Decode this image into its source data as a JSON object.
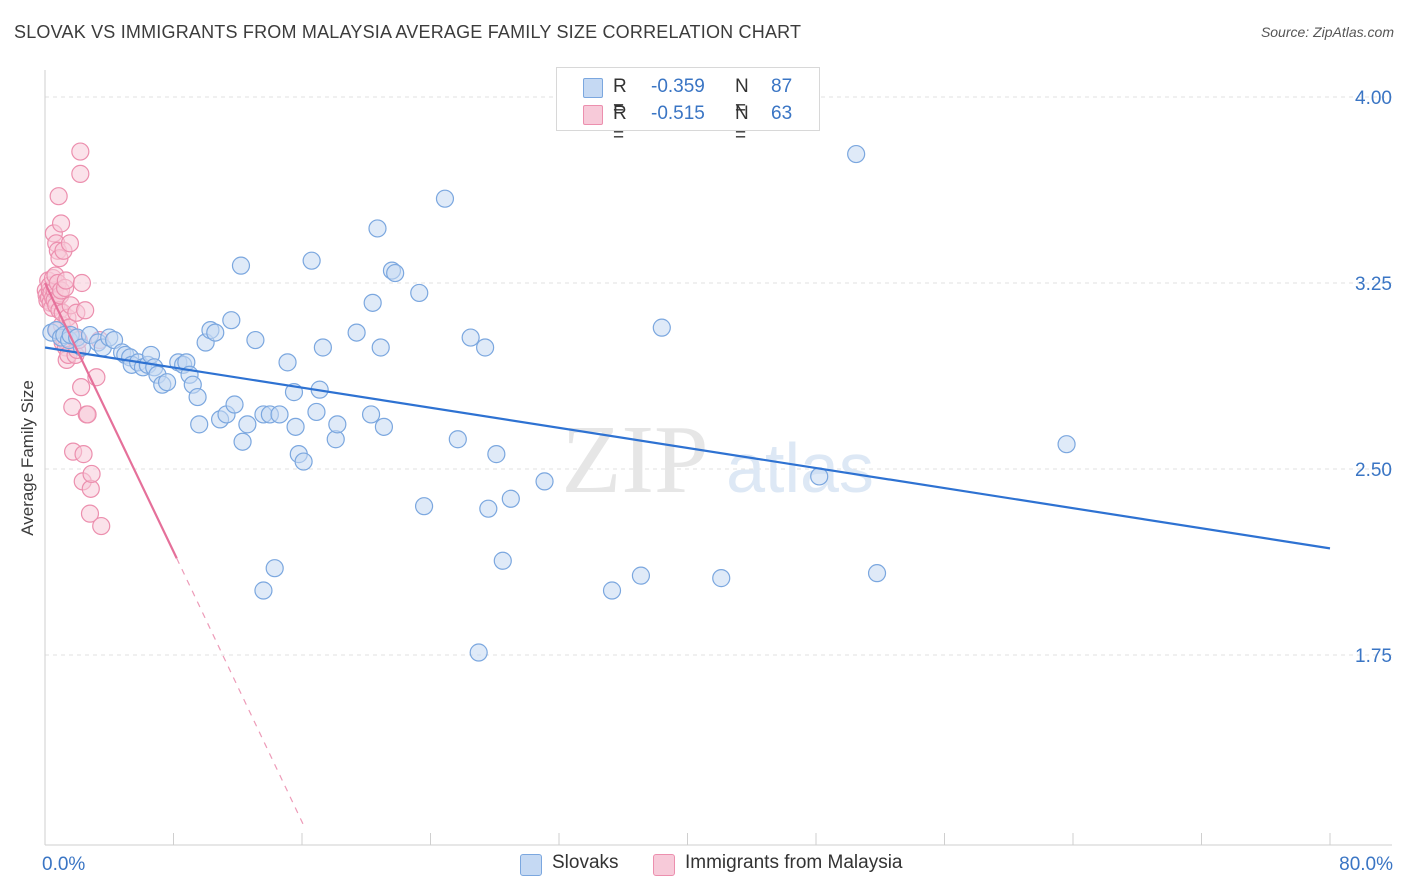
{
  "header": {
    "title": "SLOVAK VS IMMIGRANTS FROM MALAYSIA AVERAGE FAMILY SIZE CORRELATION CHART",
    "source": "Source: ZipAtlas.com"
  },
  "watermark": {
    "zip": "ZIP",
    "atlas": "atlas"
  },
  "legend_top": [
    {
      "r_label": "R =",
      "r_value": "-0.359",
      "n_label": "N =",
      "n_value": "87"
    },
    {
      "r_label": "R =",
      "r_value": "-0.515",
      "n_label": "N =",
      "n_value": "63"
    }
  ],
  "colors": {
    "blue": "#7ba7df",
    "blue_fill": "#c5d9f3",
    "blue_line": "#2e72d2",
    "pink": "#ec8fae",
    "pink_fill": "#f7cad9",
    "pink_line": "#e5709a",
    "axis_text": "#3a75c4",
    "grid": "#e2e2e2"
  },
  "chart_data": {
    "type": "scatter",
    "title": "SLOVAK VS IMMIGRANTS FROM MALAYSIA AVERAGE FAMILY SIZE CORRELATION CHART",
    "xlabel": "",
    "ylabel": "Average Family Size",
    "xlim": [
      0,
      80
    ],
    "ylim": [
      1.0,
      4.1
    ],
    "x_tick_labels": [
      "0.0%",
      "80.0%"
    ],
    "y_ticks": [
      1.75,
      2.5,
      3.25,
      4.0
    ],
    "y_tick_labels": [
      "1.75",
      "2.50",
      "3.25",
      "4.00"
    ],
    "grid": true,
    "legend_position": "top-center and bottom",
    "series": [
      {
        "name": "Slovaks",
        "color": "#7ba7df",
        "r": -0.359,
        "n": 87,
        "trend": {
          "x": [
            0,
            80
          ],
          "y": [
            2.99,
            2.18
          ]
        },
        "points": [
          [
            0.4,
            3.05
          ],
          [
            0.7,
            3.06
          ],
          [
            1.0,
            3.03
          ],
          [
            1.2,
            3.04
          ],
          [
            1.5,
            3.02
          ],
          [
            1.6,
            3.04
          ],
          [
            2.0,
            3.03
          ],
          [
            2.3,
            2.99
          ],
          [
            2.8,
            3.04
          ],
          [
            3.3,
            3.01
          ],
          [
            3.6,
            2.99
          ],
          [
            4.0,
            3.03
          ],
          [
            4.3,
            3.02
          ],
          [
            4.8,
            2.97
          ],
          [
            5.0,
            2.96
          ],
          [
            5.3,
            2.95
          ],
          [
            5.4,
            2.92
          ],
          [
            5.8,
            2.93
          ],
          [
            6.1,
            2.91
          ],
          [
            6.4,
            2.92
          ],
          [
            6.6,
            2.96
          ],
          [
            6.8,
            2.91
          ],
          [
            7.0,
            2.88
          ],
          [
            7.3,
            2.84
          ],
          [
            7.6,
            2.85
          ],
          [
            8.3,
            2.93
          ],
          [
            8.6,
            2.92
          ],
          [
            8.8,
            2.93
          ],
          [
            9.0,
            2.88
          ],
          [
            9.2,
            2.84
          ],
          [
            9.5,
            2.79
          ],
          [
            9.6,
            2.68
          ],
          [
            10.0,
            3.01
          ],
          [
            10.3,
            3.06
          ],
          [
            10.6,
            3.05
          ],
          [
            10.9,
            2.7
          ],
          [
            11.3,
            2.72
          ],
          [
            11.6,
            3.1
          ],
          [
            11.8,
            2.76
          ],
          [
            12.3,
            2.61
          ],
          [
            12.2,
            3.32
          ],
          [
            12.6,
            2.68
          ],
          [
            13.1,
            3.02
          ],
          [
            13.6,
            2.72
          ],
          [
            14.0,
            2.72
          ],
          [
            14.3,
            2.1
          ],
          [
            13.6,
            2.01
          ],
          [
            14.6,
            2.72
          ],
          [
            15.1,
            2.93
          ],
          [
            15.5,
            2.81
          ],
          [
            15.6,
            2.67
          ],
          [
            15.8,
            2.56
          ],
          [
            16.1,
            2.53
          ],
          [
            16.6,
            3.34
          ],
          [
            16.9,
            2.73
          ],
          [
            17.1,
            2.82
          ],
          [
            17.3,
            2.99
          ],
          [
            18.1,
            2.62
          ],
          [
            18.2,
            2.68
          ],
          [
            19.4,
            3.05
          ],
          [
            20.3,
            2.72
          ],
          [
            20.4,
            3.17
          ],
          [
            20.7,
            3.47
          ],
          [
            20.9,
            2.99
          ],
          [
            21.1,
            2.67
          ],
          [
            21.6,
            3.3
          ],
          [
            21.8,
            3.29
          ],
          [
            23.3,
            3.21
          ],
          [
            23.6,
            2.35
          ],
          [
            24.9,
            3.59
          ],
          [
            25.7,
            2.62
          ],
          [
            26.5,
            3.03
          ],
          [
            27.0,
            1.76
          ],
          [
            27.4,
            2.99
          ],
          [
            27.6,
            2.34
          ],
          [
            28.1,
            2.56
          ],
          [
            28.5,
            2.13
          ],
          [
            29.0,
            2.38
          ],
          [
            31.1,
            2.45
          ],
          [
            35.3,
            2.01
          ],
          [
            37.1,
            2.07
          ],
          [
            38.4,
            3.07
          ],
          [
            42.1,
            2.06
          ],
          [
            48.2,
            2.47
          ],
          [
            50.5,
            3.77
          ],
          [
            51.8,
            2.08
          ],
          [
            63.6,
            2.6
          ]
        ]
      },
      {
        "name": "Immigrants from Malaysia",
        "color": "#ec8fae",
        "r": -0.515,
        "n": 63,
        "trend": {
          "x": [
            0,
            8.2
          ],
          "y": [
            3.25,
            2.14
          ]
        },
        "trend_dashed": {
          "x": [
            8.2,
            16.2
          ],
          "y": [
            2.14,
            1.05
          ]
        },
        "points": [
          [
            0.05,
            3.22
          ],
          [
            0.1,
            3.2
          ],
          [
            0.15,
            3.18
          ],
          [
            0.2,
            3.26
          ],
          [
            0.25,
            3.19
          ],
          [
            0.3,
            3.22
          ],
          [
            0.3,
            3.24
          ],
          [
            0.35,
            3.17
          ],
          [
            0.4,
            3.21
          ],
          [
            0.45,
            3.15
          ],
          [
            0.5,
            3.27
          ],
          [
            0.5,
            3.19
          ],
          [
            0.55,
            3.45
          ],
          [
            0.6,
            3.22
          ],
          [
            0.6,
            3.18
          ],
          [
            0.65,
            3.28
          ],
          [
            0.7,
            3.16
          ],
          [
            0.7,
            3.41
          ],
          [
            0.75,
            3.06
          ],
          [
            0.8,
            3.25
          ],
          [
            0.8,
            3.38
          ],
          [
            0.85,
            3.6
          ],
          [
            0.9,
            3.14
          ],
          [
            0.9,
            3.35
          ],
          [
            0.95,
            3.2
          ],
          [
            1.0,
            3.22
          ],
          [
            1.0,
            3.49
          ],
          [
            1.05,
            3.08
          ],
          [
            1.1,
            3.13
          ],
          [
            1.1,
            3.01
          ],
          [
            1.15,
            3.38
          ],
          [
            1.2,
            3.02
          ],
          [
            1.25,
            3.23
          ],
          [
            1.3,
            2.99
          ],
          [
            1.3,
            3.26
          ],
          [
            1.35,
            2.94
          ],
          [
            1.4,
            3.11
          ],
          [
            1.45,
            2.96
          ],
          [
            1.5,
            3.07
          ],
          [
            1.55,
            3.41
          ],
          [
            1.6,
            3.16
          ],
          [
            1.7,
            2.75
          ],
          [
            1.75,
            2.57
          ],
          [
            1.8,
            3.03
          ],
          [
            1.9,
            2.96
          ],
          [
            1.95,
            3.13
          ],
          [
            2.0,
            2.98
          ],
          [
            2.1,
            3.02
          ],
          [
            2.2,
            3.78
          ],
          [
            2.2,
            3.69
          ],
          [
            2.25,
            2.83
          ],
          [
            2.3,
            3.25
          ],
          [
            2.35,
            2.45
          ],
          [
            2.4,
            2.56
          ],
          [
            2.5,
            3.14
          ],
          [
            2.6,
            2.72
          ],
          [
            2.65,
            2.72
          ],
          [
            2.8,
            2.32
          ],
          [
            2.85,
            2.42
          ],
          [
            2.9,
            2.48
          ],
          [
            3.2,
            2.87
          ],
          [
            3.4,
            3.02
          ],
          [
            3.5,
            2.27
          ]
        ]
      }
    ]
  }
}
